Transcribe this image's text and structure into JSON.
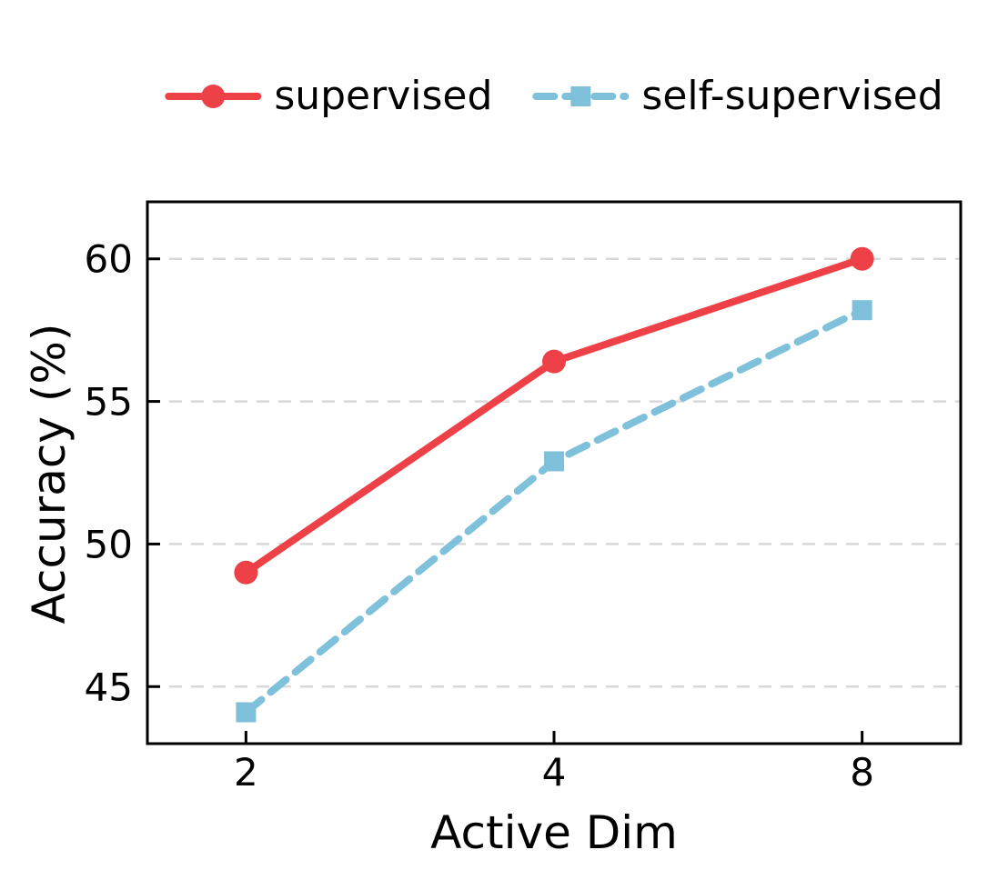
{
  "chart_data": {
    "type": "line",
    "x": [
      2,
      4,
      8
    ],
    "x_scale": "log2",
    "xticks": [
      2,
      4,
      8
    ],
    "yticks": [
      45,
      50,
      55,
      60
    ],
    "ylim": [
      43,
      62
    ],
    "xlim_log2": [
      0.68,
      3.32
    ],
    "xlabel": "Active Dim",
    "ylabel": "Accuracy (%)",
    "grid": "horizontal-dashed",
    "legend_position": "top-center",
    "series": [
      {
        "name": "supervised",
        "values": [
          49.0,
          56.4,
          60.0
        ],
        "color": "#ED4147",
        "line_style": "solid",
        "marker": "circle"
      },
      {
        "name": "self-supervised",
        "values": [
          44.1,
          52.9,
          58.2
        ],
        "color": "#7FC0DB",
        "line_style": "dashed",
        "marker": "square"
      }
    ]
  },
  "colors": {
    "background": "#FFFFFF",
    "grid": "#D9D9D9",
    "spine": "#000000",
    "text": "#000000"
  }
}
